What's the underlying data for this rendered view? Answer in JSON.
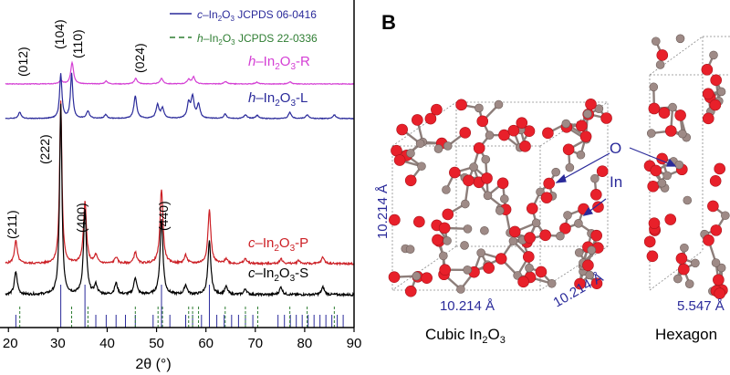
{
  "panel_b": {
    "letter": "B",
    "labels": {
      "o": "O",
      "in": "In",
      "dim_vertical": "10.214 Å",
      "dim_bottom": "10.214 Å",
      "dim_right": "10.214 Å",
      "dim_hex": "5.547 Å"
    },
    "captions": {
      "cubic_pre": "Cubic In",
      "cubic_sub": "2",
      "cubic_post": "O",
      "cubic_sub2": "3",
      "hexagonal": "Hexagon"
    },
    "colors": {
      "oxygen": "#e8202a",
      "indium": "#9e8a86",
      "label_blue": "#2a2a9a",
      "box": "#888888"
    }
  },
  "chart_data": {
    "type": "line",
    "xlabel": "2θ (°)",
    "xlim": [
      20,
      90
    ],
    "xticks": [
      20,
      30,
      40,
      50,
      60,
      70,
      80,
      90
    ],
    "ylabel": "",
    "grid": false,
    "legend": {
      "placement": "top-right",
      "entries": [
        {
          "pre": "c",
          "text": "–In",
          "sub1": "2",
          "mid": "O",
          "sub2": "3",
          "post": " JCPDS 06-0416",
          "style": "solid",
          "color": "#2a2a9a"
        },
        {
          "pre": "h",
          "text": "–In",
          "sub1": "2",
          "mid": "O",
          "sub2": "3",
          "post": " JCPDS 22-0336",
          "style": "dashed",
          "color": "#2e7d32"
        }
      ]
    },
    "series": [
      {
        "name": "h–In2O3-R",
        "label_pre": "h",
        "label_main": "–In",
        "label_sub1": "2",
        "label_mid": "O",
        "label_sub2": "3",
        "label_post": "-R",
        "color": "#d43fd4",
        "baseline": 0.0,
        "peaks": [
          [
            30.6,
            0.06
          ],
          [
            32.9,
            0.38
          ],
          [
            39.8,
            0.05
          ],
          [
            45.8,
            0.1
          ],
          [
            51.0,
            0.1
          ],
          [
            56.5,
            0.08
          ],
          [
            57.5,
            0.12
          ],
          [
            64.0,
            0.04
          ],
          [
            70.3,
            0.03
          ],
          [
            77.0,
            0.04
          ]
        ]
      },
      {
        "name": "h–In2O3-L",
        "label_pre": "h",
        "label_main": "–In",
        "label_sub1": "2",
        "label_mid": "O",
        "label_sub2": "3",
        "label_post": "-L",
        "color": "#2a2a9a",
        "baseline": 0.0,
        "peaks": [
          [
            22.3,
            0.1
          ],
          [
            30.6,
            0.72
          ],
          [
            32.8,
            0.72
          ],
          [
            36.1,
            0.12
          ],
          [
            39.7,
            0.06
          ],
          [
            45.7,
            0.36
          ],
          [
            50.2,
            0.22
          ],
          [
            51.2,
            0.16
          ],
          [
            56.5,
            0.24
          ],
          [
            57.3,
            0.34
          ],
          [
            58.5,
            0.22
          ],
          [
            63.9,
            0.07
          ],
          [
            68.0,
            0.06
          ],
          [
            70.4,
            0.05
          ],
          [
            77.0,
            0.1
          ],
          [
            80.5,
            0.06
          ],
          [
            86.0,
            0.06
          ]
        ]
      },
      {
        "name": "c–In2O3-P",
        "label_pre": "c",
        "label_main": "–In",
        "label_sub1": "2",
        "label_mid": "O",
        "label_sub2": "3",
        "label_post": "-P",
        "color": "#cc2026",
        "baseline": 0.0,
        "peaks": [
          [
            21.5,
            0.14
          ],
          [
            30.6,
            1.0
          ],
          [
            35.5,
            0.38
          ],
          [
            37.7,
            0.05
          ],
          [
            41.8,
            0.04
          ],
          [
            45.7,
            0.07
          ],
          [
            51.0,
            0.46
          ],
          [
            55.9,
            0.05
          ],
          [
            60.7,
            0.33
          ],
          [
            64.1,
            0.03
          ],
          [
            68.0,
            0.03
          ],
          [
            75.2,
            0.03
          ],
          [
            78.8,
            0.02
          ],
          [
            83.7,
            0.04
          ]
        ]
      },
      {
        "name": "c–In2O3-S",
        "label_pre": "c",
        "label_main": "–In",
        "label_sub1": "2",
        "label_mid": "O",
        "label_sub2": "3",
        "label_post": "-S",
        "color": "#000000",
        "baseline": 0.0,
        "peaks": [
          [
            21.5,
            0.12
          ],
          [
            30.6,
            1.0
          ],
          [
            35.5,
            0.44
          ],
          [
            37.7,
            0.05
          ],
          [
            41.8,
            0.06
          ],
          [
            45.7,
            0.09
          ],
          [
            51.0,
            0.4
          ],
          [
            55.9,
            0.05
          ],
          [
            60.7,
            0.28
          ],
          [
            64.1,
            0.04
          ],
          [
            68.0,
            0.03
          ],
          [
            75.2,
            0.04
          ],
          [
            83.7,
            0.04
          ]
        ]
      }
    ],
    "reference_sticks": {
      "cubic_solid": [
        21.5,
        30.6,
        35.5,
        37.7,
        39.8,
        41.8,
        43.7,
        45.7,
        49.3,
        51.0,
        52.7,
        55.9,
        57.3,
        59.1,
        60.7,
        62.2,
        63.7,
        65.2,
        66.6,
        68.0,
        69.5,
        74.6,
        75.9,
        77.1,
        78.3,
        79.5,
        80.7,
        81.9,
        83.1,
        84.3,
        85.5,
        86.6,
        87.8
      ],
      "hexagonal_dashed": [
        22.3,
        32.8,
        36.1,
        45.7,
        50.3,
        51.2,
        56.5,
        57.3,
        58.5,
        63.9,
        68.0,
        70.5,
        77.0,
        80.5,
        86.0
      ]
    },
    "annotations": [
      {
        "text": "(012)",
        "x": 22.3
      },
      {
        "text": "(104)",
        "x": 30.6
      },
      {
        "text": "(110)",
        "x": 32.8
      },
      {
        "text": "(024)",
        "x": 45.7
      },
      {
        "text": "(222)",
        "x": 30.6
      },
      {
        "text": "(211)",
        "x": 21.5
      },
      {
        "text": "(400)",
        "x": 35.5
      },
      {
        "text": "(440)",
        "x": 51.0
      }
    ]
  }
}
